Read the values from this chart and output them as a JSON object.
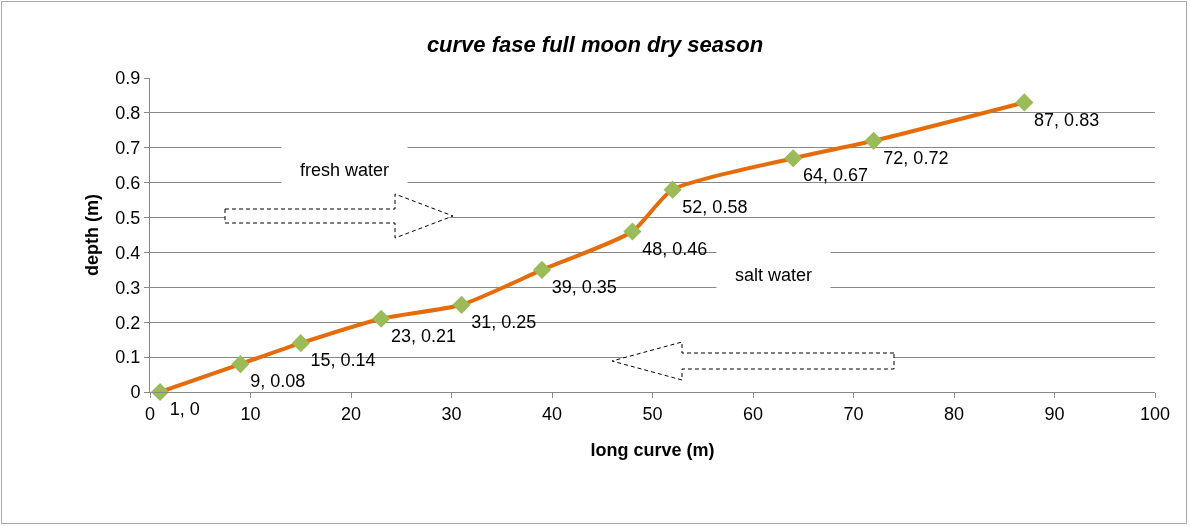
{
  "chart_data": {
    "type": "line",
    "title": "curve fase full moon dry season",
    "xlabel": "long curve (m)",
    "ylabel": "depth (m)",
    "x": [
      1,
      9,
      15,
      23,
      31,
      39,
      48,
      52,
      64,
      72,
      87
    ],
    "series": [
      {
        "color": "#e46c0a",
        "colors": [
          "#9bbb59",
          "#9bbb59",
          "#9bbb59",
          "#9bbb59",
          "#9bbb59",
          "#9bbb59",
          "#9bbb59",
          "#9bbb59",
          "#9bbb59",
          "#9bbb59",
          "#9bbb59"
        ],
        "values": [
          0,
          0.08,
          0.14,
          0.21,
          0.25,
          0.35,
          0.46,
          0.58,
          0.67,
          0.72,
          0.83
        ],
        "value_labels": [
          "1, 0",
          "9, 0.08",
          "15, 0.14",
          "23, 0.21",
          "31, 0.25",
          "39, 0.35",
          "48, 0.46",
          "52, 0.58",
          "64, 0.67",
          "72, 0.72",
          "87, 0.83"
        ]
      }
    ],
    "xlim": [
      0,
      100
    ],
    "xticks": [
      0,
      10,
      20,
      30,
      40,
      50,
      60,
      70,
      80,
      90,
      100
    ],
    "ylim": [
      0,
      0.9
    ],
    "yticks": [
      0,
      0.1,
      0.2,
      0.3,
      0.4,
      0.5,
      0.6,
      0.7,
      0.8,
      0.9
    ],
    "grid": "y",
    "legend": false,
    "marker": "diamond",
    "line_style": "solid",
    "annotations": [
      "fresh water",
      "salt water"
    ]
  }
}
